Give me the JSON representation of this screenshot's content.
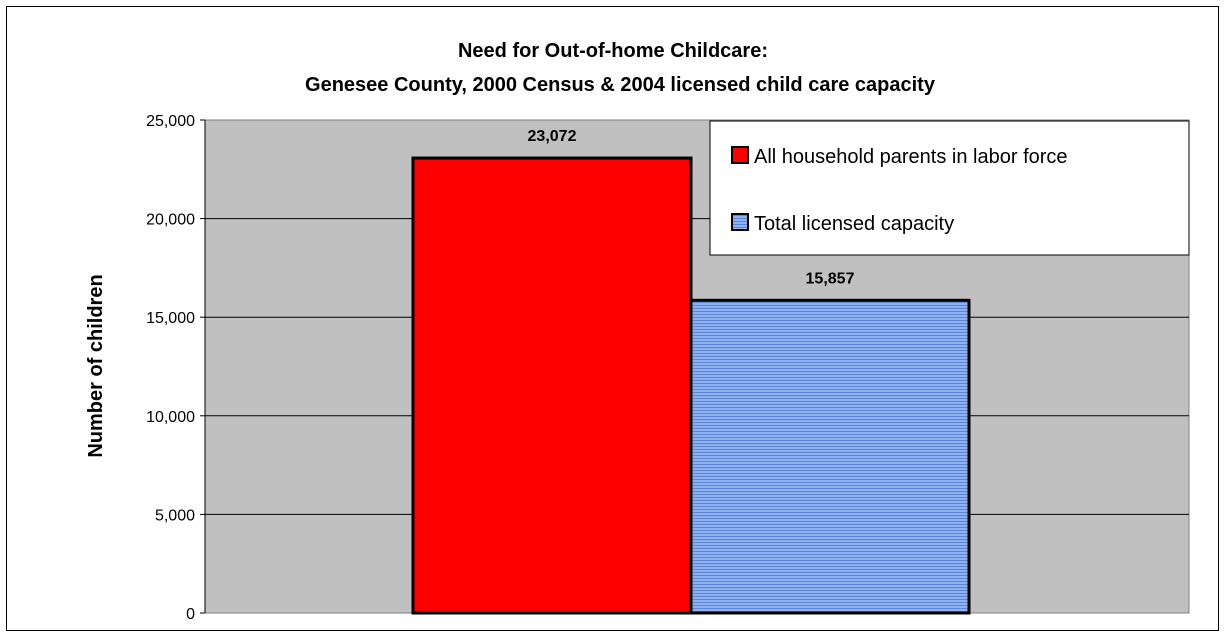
{
  "chart_data": {
    "type": "bar",
    "title": "Need for Out-of-home Childcare:",
    "subtitle": "Genesee County, 2000 Census & 2004 licensed child care capacity",
    "xlabel": "",
    "ylabel": "Number of children",
    "ylim": [
      0,
      25000
    ],
    "yticks": [
      "0",
      "5,000",
      "10,000",
      "15,000",
      "20,000",
      "25,000"
    ],
    "grid": true,
    "legend_position": "top-right",
    "series": [
      {
        "name": "All household parents in labor force",
        "value": 23072,
        "label": "23,072",
        "color": "#ff0000",
        "pattern": "solid"
      },
      {
        "name": "Total licensed capacity",
        "value": 15857,
        "label": "15,857",
        "color": "#6f9eea",
        "pattern": "horizontal-lines"
      }
    ],
    "plot_background": "#c0c0c0"
  }
}
